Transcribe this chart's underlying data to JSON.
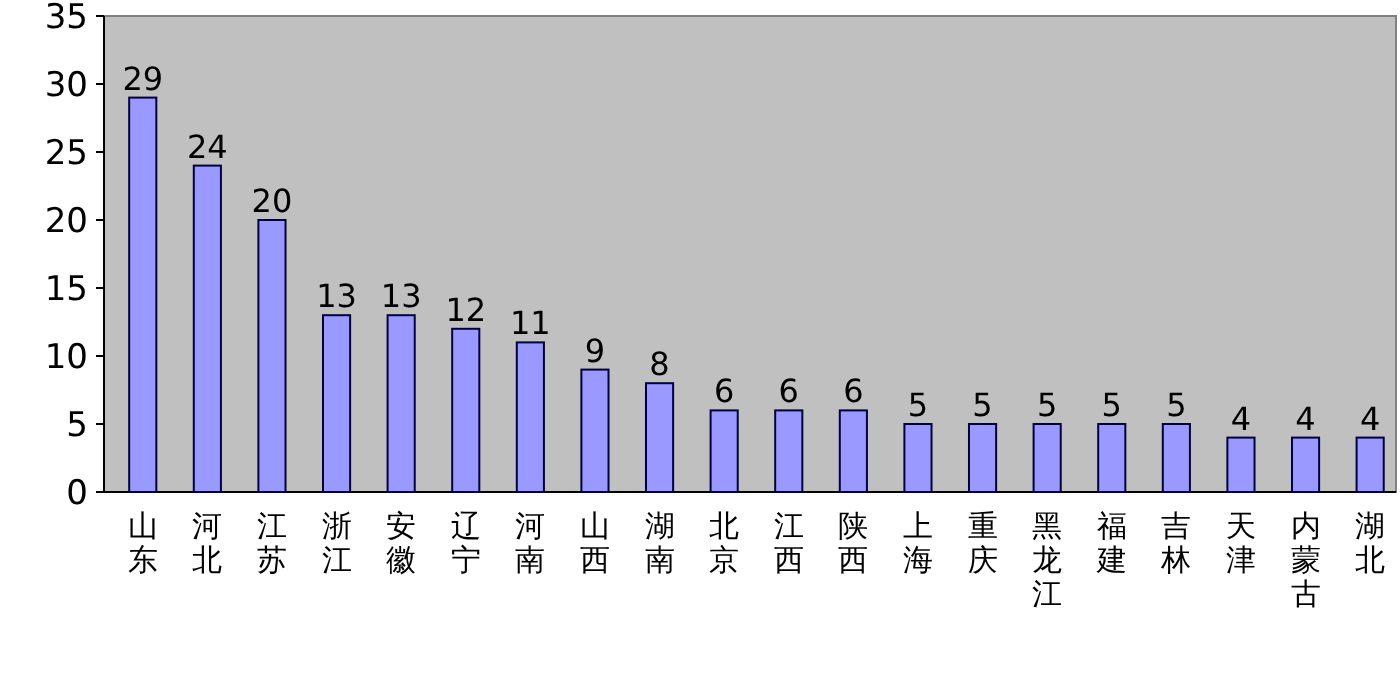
{
  "chart_data": {
    "type": "bar",
    "categories": [
      "山东",
      "河北",
      "江苏",
      "浙江",
      "安徽",
      "辽宁",
      "河南",
      "山西",
      "湖南",
      "北京",
      "江西",
      "陕西",
      "上海",
      "重庆",
      "黑龙江",
      "福建",
      "吉林",
      "天津",
      "内蒙古",
      "湖北"
    ],
    "values": [
      29,
      24,
      20,
      13,
      13,
      12,
      11,
      9,
      8,
      6,
      6,
      6,
      5,
      5,
      5,
      5,
      5,
      4,
      4,
      4
    ],
    "color": "#9999ff",
    "ylim": [
      0,
      35
    ],
    "yticks": [
      0,
      5,
      10,
      15,
      20,
      25,
      30,
      35
    ],
    "data_labels": true
  }
}
